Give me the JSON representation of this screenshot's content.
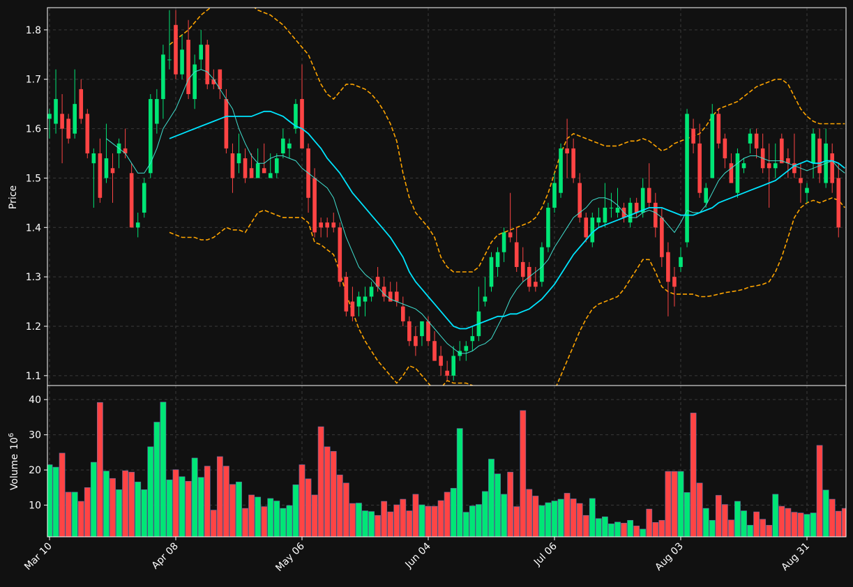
{
  "chart_data": {
    "type": "candlestick",
    "price_axis": {
      "label": "Price",
      "ticks": [
        "1.1",
        "1.2",
        "1.3",
        "1.4",
        "1.5",
        "1.6",
        "1.7",
        "1.8"
      ],
      "ylim": [
        1.08,
        1.845
      ]
    },
    "volume_axis": {
      "label": "Volume",
      "exponent": "10",
      "exponent_power": "6",
      "ticks": [
        "10",
        "20",
        "30",
        "40"
      ],
      "ylim": [
        1,
        44
      ]
    },
    "x_ticks": [
      "Mar 10",
      "Apr 08",
      "May 06",
      "Jun 04",
      "Jul 06",
      "Aug 03",
      "Aug 31"
    ],
    "grid": true,
    "colors": {
      "background": "#111111",
      "up": "#00e676",
      "down": "#ff4444",
      "bollinger": "#ffa500",
      "ma_fast": "#40e0d0",
      "ma_slow": "#00e5ff",
      "axis": "#ffffff",
      "grid": "#3a3a3a"
    },
    "candles_ohlc": [
      [
        1.62,
        1.64,
        1.58,
        1.63
      ],
      [
        1.61,
        1.72,
        1.59,
        1.66
      ],
      [
        1.63,
        1.67,
        1.53,
        1.6
      ],
      [
        1.62,
        1.63,
        1.57,
        1.58
      ],
      [
        1.59,
        1.72,
        1.58,
        1.65
      ],
      [
        1.68,
        1.7,
        1.61,
        1.62
      ],
      [
        1.63,
        1.64,
        1.54,
        1.55
      ],
      [
        1.53,
        1.56,
        1.44,
        1.55
      ],
      [
        1.55,
        1.58,
        1.45,
        1.46
      ],
      [
        1.5,
        1.61,
        1.49,
        1.54
      ],
      [
        1.52,
        1.55,
        1.45,
        1.51
      ],
      [
        1.55,
        1.58,
        1.52,
        1.57
      ],
      [
        1.56,
        1.6,
        1.54,
        1.55
      ],
      [
        1.51,
        1.53,
        1.4,
        1.4
      ],
      [
        1.4,
        1.43,
        1.38,
        1.41
      ],
      [
        1.43,
        1.5,
        1.42,
        1.49
      ],
      [
        1.51,
        1.67,
        1.5,
        1.66
      ],
      [
        1.61,
        1.68,
        1.59,
        1.66
      ],
      [
        1.66,
        1.77,
        1.62,
        1.75
      ],
      [
        1.74,
        1.84,
        1.72,
        1.74
      ],
      [
        1.81,
        1.84,
        1.7,
        1.71
      ],
      [
        1.71,
        1.79,
        1.7,
        1.76
      ],
      [
        1.78,
        1.82,
        1.66,
        1.67
      ],
      [
        1.66,
        1.75,
        1.64,
        1.73
      ],
      [
        1.74,
        1.8,
        1.72,
        1.77
      ],
      [
        1.77,
        1.78,
        1.68,
        1.69
      ],
      [
        1.7,
        1.72,
        1.68,
        1.69
      ],
      [
        1.72,
        1.72,
        1.66,
        1.68
      ],
      [
        1.66,
        1.68,
        1.55,
        1.56
      ],
      [
        1.55,
        1.57,
        1.47,
        1.5
      ],
      [
        1.53,
        1.59,
        1.51,
        1.55
      ],
      [
        1.54,
        1.56,
        1.49,
        1.5
      ],
      [
        1.52,
        1.55,
        1.5,
        1.5
      ],
      [
        1.5,
        1.56,
        1.5,
        1.53
      ],
      [
        1.52,
        1.57,
        1.51,
        1.51
      ],
      [
        1.5,
        1.55,
        1.5,
        1.51
      ],
      [
        1.51,
        1.55,
        1.5,
        1.54
      ],
      [
        1.55,
        1.6,
        1.54,
        1.58
      ],
      [
        1.56,
        1.58,
        1.54,
        1.57
      ],
      [
        1.6,
        1.66,
        1.59,
        1.65
      ],
      [
        1.66,
        1.73,
        1.63,
        1.56
      ],
      [
        1.56,
        1.57,
        1.43,
        1.46
      ],
      [
        1.5,
        1.52,
        1.38,
        1.39
      ],
      [
        1.41,
        1.42,
        1.38,
        1.4
      ],
      [
        1.41,
        1.42,
        1.38,
        1.4
      ],
      [
        1.41,
        1.43,
        1.39,
        1.4
      ],
      [
        1.4,
        1.41,
        1.28,
        1.29
      ],
      [
        1.3,
        1.31,
        1.22,
        1.23
      ],
      [
        1.25,
        1.28,
        1.21,
        1.22
      ],
      [
        1.24,
        1.27,
        1.22,
        1.26
      ],
      [
        1.25,
        1.28,
        1.22,
        1.26
      ],
      [
        1.26,
        1.29,
        1.25,
        1.28
      ],
      [
        1.3,
        1.32,
        1.27,
        1.28
      ],
      [
        1.28,
        1.3,
        1.25,
        1.26
      ],
      [
        1.27,
        1.29,
        1.25,
        1.25
      ],
      [
        1.27,
        1.29,
        1.24,
        1.25
      ],
      [
        1.24,
        1.26,
        1.2,
        1.21
      ],
      [
        1.21,
        1.22,
        1.16,
        1.17
      ],
      [
        1.18,
        1.2,
        1.14,
        1.16
      ],
      [
        1.18,
        1.21,
        1.16,
        1.21
      ],
      [
        1.21,
        1.22,
        1.16,
        1.17
      ],
      [
        1.17,
        1.19,
        1.13,
        1.13
      ],
      [
        1.14,
        1.16,
        1.1,
        1.12
      ],
      [
        1.11,
        1.13,
        1.09,
        1.1
      ],
      [
        1.1,
        1.16,
        1.09,
        1.14
      ],
      [
        1.14,
        1.17,
        1.13,
        1.15
      ],
      [
        1.15,
        1.17,
        1.13,
        1.16
      ],
      [
        1.17,
        1.2,
        1.15,
        1.18
      ],
      [
        1.18,
        1.28,
        1.17,
        1.23
      ],
      [
        1.25,
        1.3,
        1.24,
        1.26
      ],
      [
        1.28,
        1.35,
        1.27,
        1.34
      ],
      [
        1.32,
        1.36,
        1.3,
        1.35
      ],
      [
        1.35,
        1.4,
        1.33,
        1.39
      ],
      [
        1.39,
        1.47,
        1.37,
        1.38
      ],
      [
        1.37,
        1.4,
        1.31,
        1.32
      ],
      [
        1.33,
        1.36,
        1.29,
        1.3
      ],
      [
        1.32,
        1.33,
        1.27,
        1.28
      ],
      [
        1.29,
        1.32,
        1.27,
        1.28
      ],
      [
        1.29,
        1.37,
        1.28,
        1.36
      ],
      [
        1.36,
        1.45,
        1.35,
        1.44
      ],
      [
        1.44,
        1.51,
        1.43,
        1.49
      ],
      [
        1.47,
        1.57,
        1.46,
        1.56
      ],
      [
        1.56,
        1.62,
        1.5,
        1.55
      ],
      [
        1.56,
        1.58,
        1.49,
        1.5
      ],
      [
        1.49,
        1.51,
        1.41,
        1.42
      ],
      [
        1.42,
        1.43,
        1.37,
        1.38
      ],
      [
        1.37,
        1.43,
        1.36,
        1.42
      ],
      [
        1.41,
        1.44,
        1.4,
        1.42
      ],
      [
        1.41,
        1.49,
        1.4,
        1.44
      ],
      [
        1.44,
        1.47,
        1.42,
        1.44
      ],
      [
        1.43,
        1.48,
        1.42,
        1.44
      ],
      [
        1.44,
        1.45,
        1.41,
        1.42
      ],
      [
        1.41,
        1.46,
        1.4,
        1.45
      ],
      [
        1.45,
        1.46,
        1.42,
        1.43
      ],
      [
        1.43,
        1.5,
        1.42,
        1.48
      ],
      [
        1.48,
        1.53,
        1.44,
        1.45
      ],
      [
        1.45,
        1.47,
        1.38,
        1.4
      ],
      [
        1.42,
        1.44,
        1.32,
        1.34
      ],
      [
        1.35,
        1.37,
        1.22,
        1.29
      ],
      [
        1.3,
        1.32,
        1.24,
        1.28
      ],
      [
        1.32,
        1.36,
        1.31,
        1.34
      ],
      [
        1.37,
        1.64,
        1.36,
        1.63
      ],
      [
        1.6,
        1.62,
        1.55,
        1.57
      ],
      [
        1.57,
        1.61,
        1.46,
        1.47
      ],
      [
        1.45,
        1.49,
        1.44,
        1.48
      ],
      [
        1.5,
        1.65,
        1.5,
        1.63
      ],
      [
        1.63,
        1.64,
        1.56,
        1.57
      ],
      [
        1.58,
        1.59,
        1.52,
        1.54
      ],
      [
        1.53,
        1.55,
        1.49,
        1.49
      ],
      [
        1.47,
        1.56,
        1.46,
        1.55
      ],
      [
        1.52,
        1.54,
        1.51,
        1.53
      ],
      [
        1.57,
        1.6,
        1.55,
        1.59
      ],
      [
        1.59,
        1.6,
        1.54,
        1.56
      ],
      [
        1.56,
        1.59,
        1.51,
        1.52
      ],
      [
        1.53,
        1.57,
        1.44,
        1.52
      ],
      [
        1.52,
        1.57,
        1.5,
        1.53
      ],
      [
        1.58,
        1.59,
        1.53,
        1.53
      ],
      [
        1.54,
        1.56,
        1.5,
        1.53
      ],
      [
        1.53,
        1.59,
        1.5,
        1.51
      ],
      [
        1.5,
        1.53,
        1.45,
        1.49
      ],
      [
        1.47,
        1.49,
        1.45,
        1.48
      ],
      [
        1.53,
        1.6,
        1.5,
        1.59
      ],
      [
        1.58,
        1.6,
        1.49,
        1.51
      ],
      [
        1.49,
        1.6,
        1.48,
        1.57
      ],
      [
        1.55,
        1.57,
        1.47,
        1.49
      ],
      [
        1.5,
        1.53,
        1.38,
        1.4
      ]
    ],
    "volume": [
      21.5,
      20.8,
      24.8,
      13.7,
      13.7,
      11.1,
      15,
      22.2,
      39.2,
      19.7,
      17.6,
      14.4,
      19.8,
      19.4,
      16.6,
      14.4,
      26.6,
      33.6,
      39.3,
      17.2,
      20.1,
      18.1,
      16.8,
      23.4,
      17.9,
      21.1,
      8.6,
      23.8,
      21.1,
      15.9,
      16.6,
      9.1,
      12.9,
      12.3,
      9.6,
      11.9,
      11.2,
      9.1,
      9.9,
      15.8,
      21.5,
      17.5,
      12.9,
      32.3,
      26.6,
      25.3,
      18.6,
      16.3,
      10.5,
      10.6,
      8.4,
      8.2,
      7.1,
      11.1,
      8.1,
      10.1,
      11.7,
      8.4,
      13.1,
      10.1,
      9.7,
      9.7,
      11.3,
      13.7,
      14.8,
      31.8,
      8,
      9.8,
      10.2,
      13.9,
      23.1,
      18.9,
      13.1,
      19.4,
      9.6,
      36.9,
      14.5,
      12.6,
      9.9,
      10.7,
      11.2,
      11.7,
      13.4,
      11.8,
      10.5,
      7.1,
      11.9,
      6.2,
      6.7,
      4.7,
      5.2,
      4.9,
      5.7,
      4.1,
      3.2,
      8.9,
      5.1,
      5.7,
      19.6,
      19.6,
      19.6,
      13.6,
      36.2,
      16.3,
      9.1,
      5.7,
      12.8,
      10.2,
      5.8,
      11.1,
      8.4,
      4.3,
      8.1,
      6,
      4.3,
      13.1,
      9.7,
      9.1,
      8,
      7.8,
      7.4,
      7.8,
      27,
      14.3,
      11.7,
      8.3,
      9.1
    ],
    "ma_fast": [
      null,
      null,
      null,
      null,
      null,
      null,
      null,
      null,
      null,
      1.58,
      1.57,
      1.56,
      1.55,
      1.53,
      1.51,
      1.51,
      1.53,
      1.56,
      1.6,
      1.62,
      1.64,
      1.67,
      1.7,
      1.715,
      1.72,
      1.715,
      1.7,
      1.68,
      1.66,
      1.64,
      1.6,
      1.57,
      1.545,
      1.53,
      1.53,
      1.54,
      1.545,
      1.545,
      1.54,
      1.535,
      1.52,
      1.51,
      1.5,
      1.49,
      1.48,
      1.46,
      1.42,
      1.38,
      1.35,
      1.32,
      1.305,
      1.295,
      1.28,
      1.265,
      1.255,
      1.25,
      1.245,
      1.24,
      1.235,
      1.225,
      1.21,
      1.195,
      1.18,
      1.165,
      1.155,
      1.145,
      1.145,
      1.15,
      1.16,
      1.165,
      1.175,
      1.2,
      1.225,
      1.255,
      1.275,
      1.29,
      1.3,
      1.31,
      1.32,
      1.335,
      1.36,
      1.38,
      1.4,
      1.42,
      1.43,
      1.44,
      1.455,
      1.46,
      1.46,
      1.455,
      1.445,
      1.43,
      1.42,
      1.42,
      1.43,
      1.435,
      1.43,
      1.42,
      1.405,
      1.39,
      1.41,
      1.435,
      1.43,
      1.43,
      1.445,
      1.47,
      1.495,
      1.51,
      1.52,
      1.53,
      1.54,
      1.545,
      1.545,
      1.54,
      1.535,
      1.535,
      1.535,
      1.53,
      1.525,
      1.52,
      1.515,
      1.52,
      1.525,
      1.53,
      1.535,
      1.52,
      1.51
    ],
    "ma_slow": [
      null,
      null,
      null,
      null,
      null,
      null,
      null,
      null,
      null,
      null,
      null,
      null,
      null,
      null,
      null,
      null,
      null,
      null,
      null,
      1.58,
      1.585,
      1.59,
      1.595,
      1.6,
      1.605,
      1.61,
      1.615,
      1.62,
      1.625,
      1.625,
      1.625,
      1.625,
      1.625,
      1.63,
      1.635,
      1.635,
      1.63,
      1.625,
      1.615,
      1.605,
      1.6,
      1.59,
      1.575,
      1.56,
      1.54,
      1.525,
      1.51,
      1.49,
      1.47,
      1.455,
      1.44,
      1.425,
      1.41,
      1.395,
      1.38,
      1.36,
      1.34,
      1.31,
      1.29,
      1.275,
      1.26,
      1.245,
      1.23,
      1.215,
      1.2,
      1.195,
      1.195,
      1.2,
      1.205,
      1.21,
      1.215,
      1.22,
      1.22,
      1.225,
      1.225,
      1.23,
      1.235,
      1.245,
      1.255,
      1.27,
      1.285,
      1.305,
      1.325,
      1.345,
      1.36,
      1.375,
      1.39,
      1.4,
      1.405,
      1.41,
      1.415,
      1.42,
      1.425,
      1.43,
      1.435,
      1.44,
      1.44,
      1.44,
      1.435,
      1.43,
      1.425,
      1.425,
      1.425,
      1.43,
      1.435,
      1.44,
      1.45,
      1.455,
      1.46,
      1.465,
      1.47,
      1.475,
      1.48,
      1.485,
      1.49,
      1.495,
      1.505,
      1.515,
      1.525,
      1.53,
      1.535,
      1.53,
      1.53,
      1.535,
      1.535,
      1.53,
      1.52
    ],
    "bollinger_upper": [
      null,
      null,
      null,
      null,
      null,
      null,
      null,
      null,
      null,
      null,
      null,
      null,
      null,
      null,
      null,
      null,
      null,
      null,
      null,
      1.77,
      1.78,
      1.79,
      1.8,
      1.815,
      1.83,
      1.84,
      1.85,
      1.86,
      1.87,
      1.875,
      1.87,
      1.86,
      1.85,
      1.84,
      1.835,
      1.83,
      1.82,
      1.81,
      1.795,
      1.78,
      1.765,
      1.75,
      1.72,
      1.69,
      1.67,
      1.66,
      1.675,
      1.69,
      1.69,
      1.685,
      1.68,
      1.67,
      1.655,
      1.635,
      1.61,
      1.575,
      1.51,
      1.46,
      1.43,
      1.415,
      1.4,
      1.38,
      1.34,
      1.32,
      1.31,
      1.31,
      1.31,
      1.31,
      1.32,
      1.345,
      1.37,
      1.385,
      1.39,
      1.395,
      1.4,
      1.405,
      1.41,
      1.42,
      1.44,
      1.47,
      1.51,
      1.55,
      1.58,
      1.59,
      1.585,
      1.58,
      1.575,
      1.57,
      1.565,
      1.565,
      1.565,
      1.57,
      1.575,
      1.575,
      1.58,
      1.575,
      1.565,
      1.555,
      1.56,
      1.57,
      1.575,
      1.58,
      1.585,
      1.59,
      1.605,
      1.625,
      1.64,
      1.645,
      1.65,
      1.655,
      1.665,
      1.675,
      1.685,
      1.69,
      1.695,
      1.7,
      1.7,
      1.69,
      1.665,
      1.64,
      1.625,
      1.615,
      1.61,
      1.61,
      1.61,
      1.61,
      1.61
    ],
    "bollinger_lower": [
      null,
      null,
      null,
      null,
      null,
      null,
      null,
      null,
      null,
      null,
      null,
      null,
      null,
      null,
      null,
      null,
      null,
      null,
      null,
      1.39,
      1.385,
      1.38,
      1.38,
      1.38,
      1.375,
      1.375,
      1.38,
      1.39,
      1.4,
      1.395,
      1.395,
      1.39,
      1.41,
      1.43,
      1.435,
      1.43,
      1.425,
      1.42,
      1.42,
      1.42,
      1.42,
      1.41,
      1.37,
      1.365,
      1.355,
      1.345,
      1.31,
      1.265,
      1.23,
      1.195,
      1.17,
      1.15,
      1.13,
      1.115,
      1.1,
      1.085,
      1.1,
      1.12,
      1.115,
      1.1,
      1.085,
      1.07,
      1.075,
      1.09,
      1.085,
      1.085,
      1.085,
      1.08,
      1.07,
      1.06,
      1.05,
      1.03,
      1,
      0.98,
      0.96,
      0.95,
      0.96,
      0.98,
      1.01,
      1.04,
      1.07,
      1.1,
      1.13,
      1.16,
      1.19,
      1.215,
      1.235,
      1.245,
      1.25,
      1.255,
      1.26,
      1.275,
      1.295,
      1.315,
      1.335,
      1.335,
      1.31,
      1.28,
      1.27,
      1.265,
      1.265,
      1.265,
      1.265,
      1.26,
      1.26,
      1.262,
      1.265,
      1.268,
      1.27,
      1.272,
      1.275,
      1.28,
      1.282,
      1.285,
      1.29,
      1.31,
      1.34,
      1.38,
      1.42,
      1.44,
      1.45,
      1.455,
      1.45,
      1.455,
      1.46,
      1.455,
      1.44
    ]
  }
}
